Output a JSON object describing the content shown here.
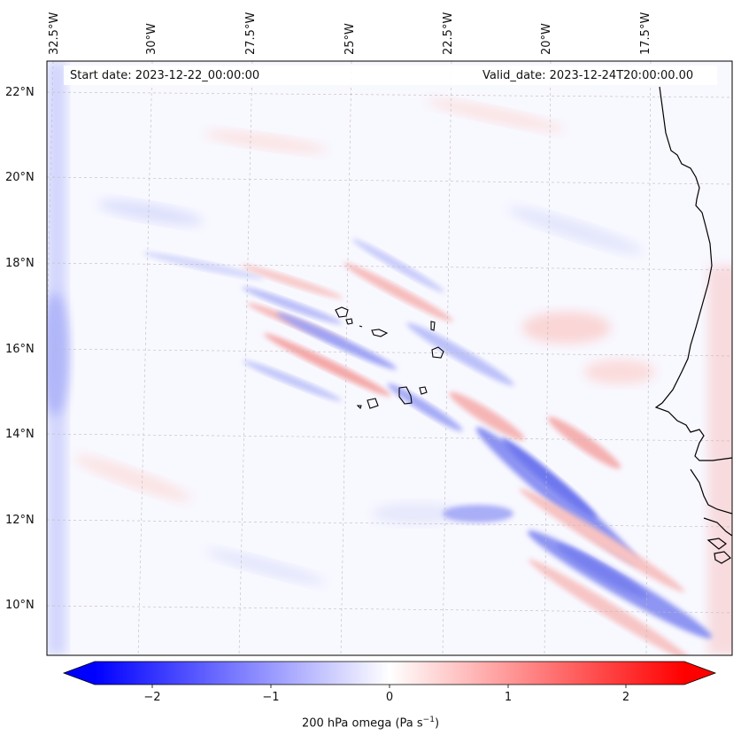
{
  "header": {
    "start_date": "Start date: 2023-12-22_00:00:00",
    "valid_date": "Valid_date: 2023-12-24T20:00:00.00"
  },
  "axes": {
    "lon_labels": [
      "32.5°W",
      "30°W",
      "27.5°W",
      "25°W",
      "22.5°W",
      "20°W",
      "17.5°W"
    ],
    "lat_labels": [
      "22°N",
      "20°N",
      "18°N",
      "16°N",
      "14°N",
      "12°N",
      "10°N"
    ]
  },
  "colorbar": {
    "tick_labels": [
      "−2",
      "−1",
      "0",
      "1",
      "2"
    ],
    "title": "200 hPa omega (Pa s",
    "title_sup": "−1",
    "title_end": ")",
    "min_color": "#0000ff",
    "zero_color": "#ffffff",
    "max_color": "#ff0000"
  }
}
